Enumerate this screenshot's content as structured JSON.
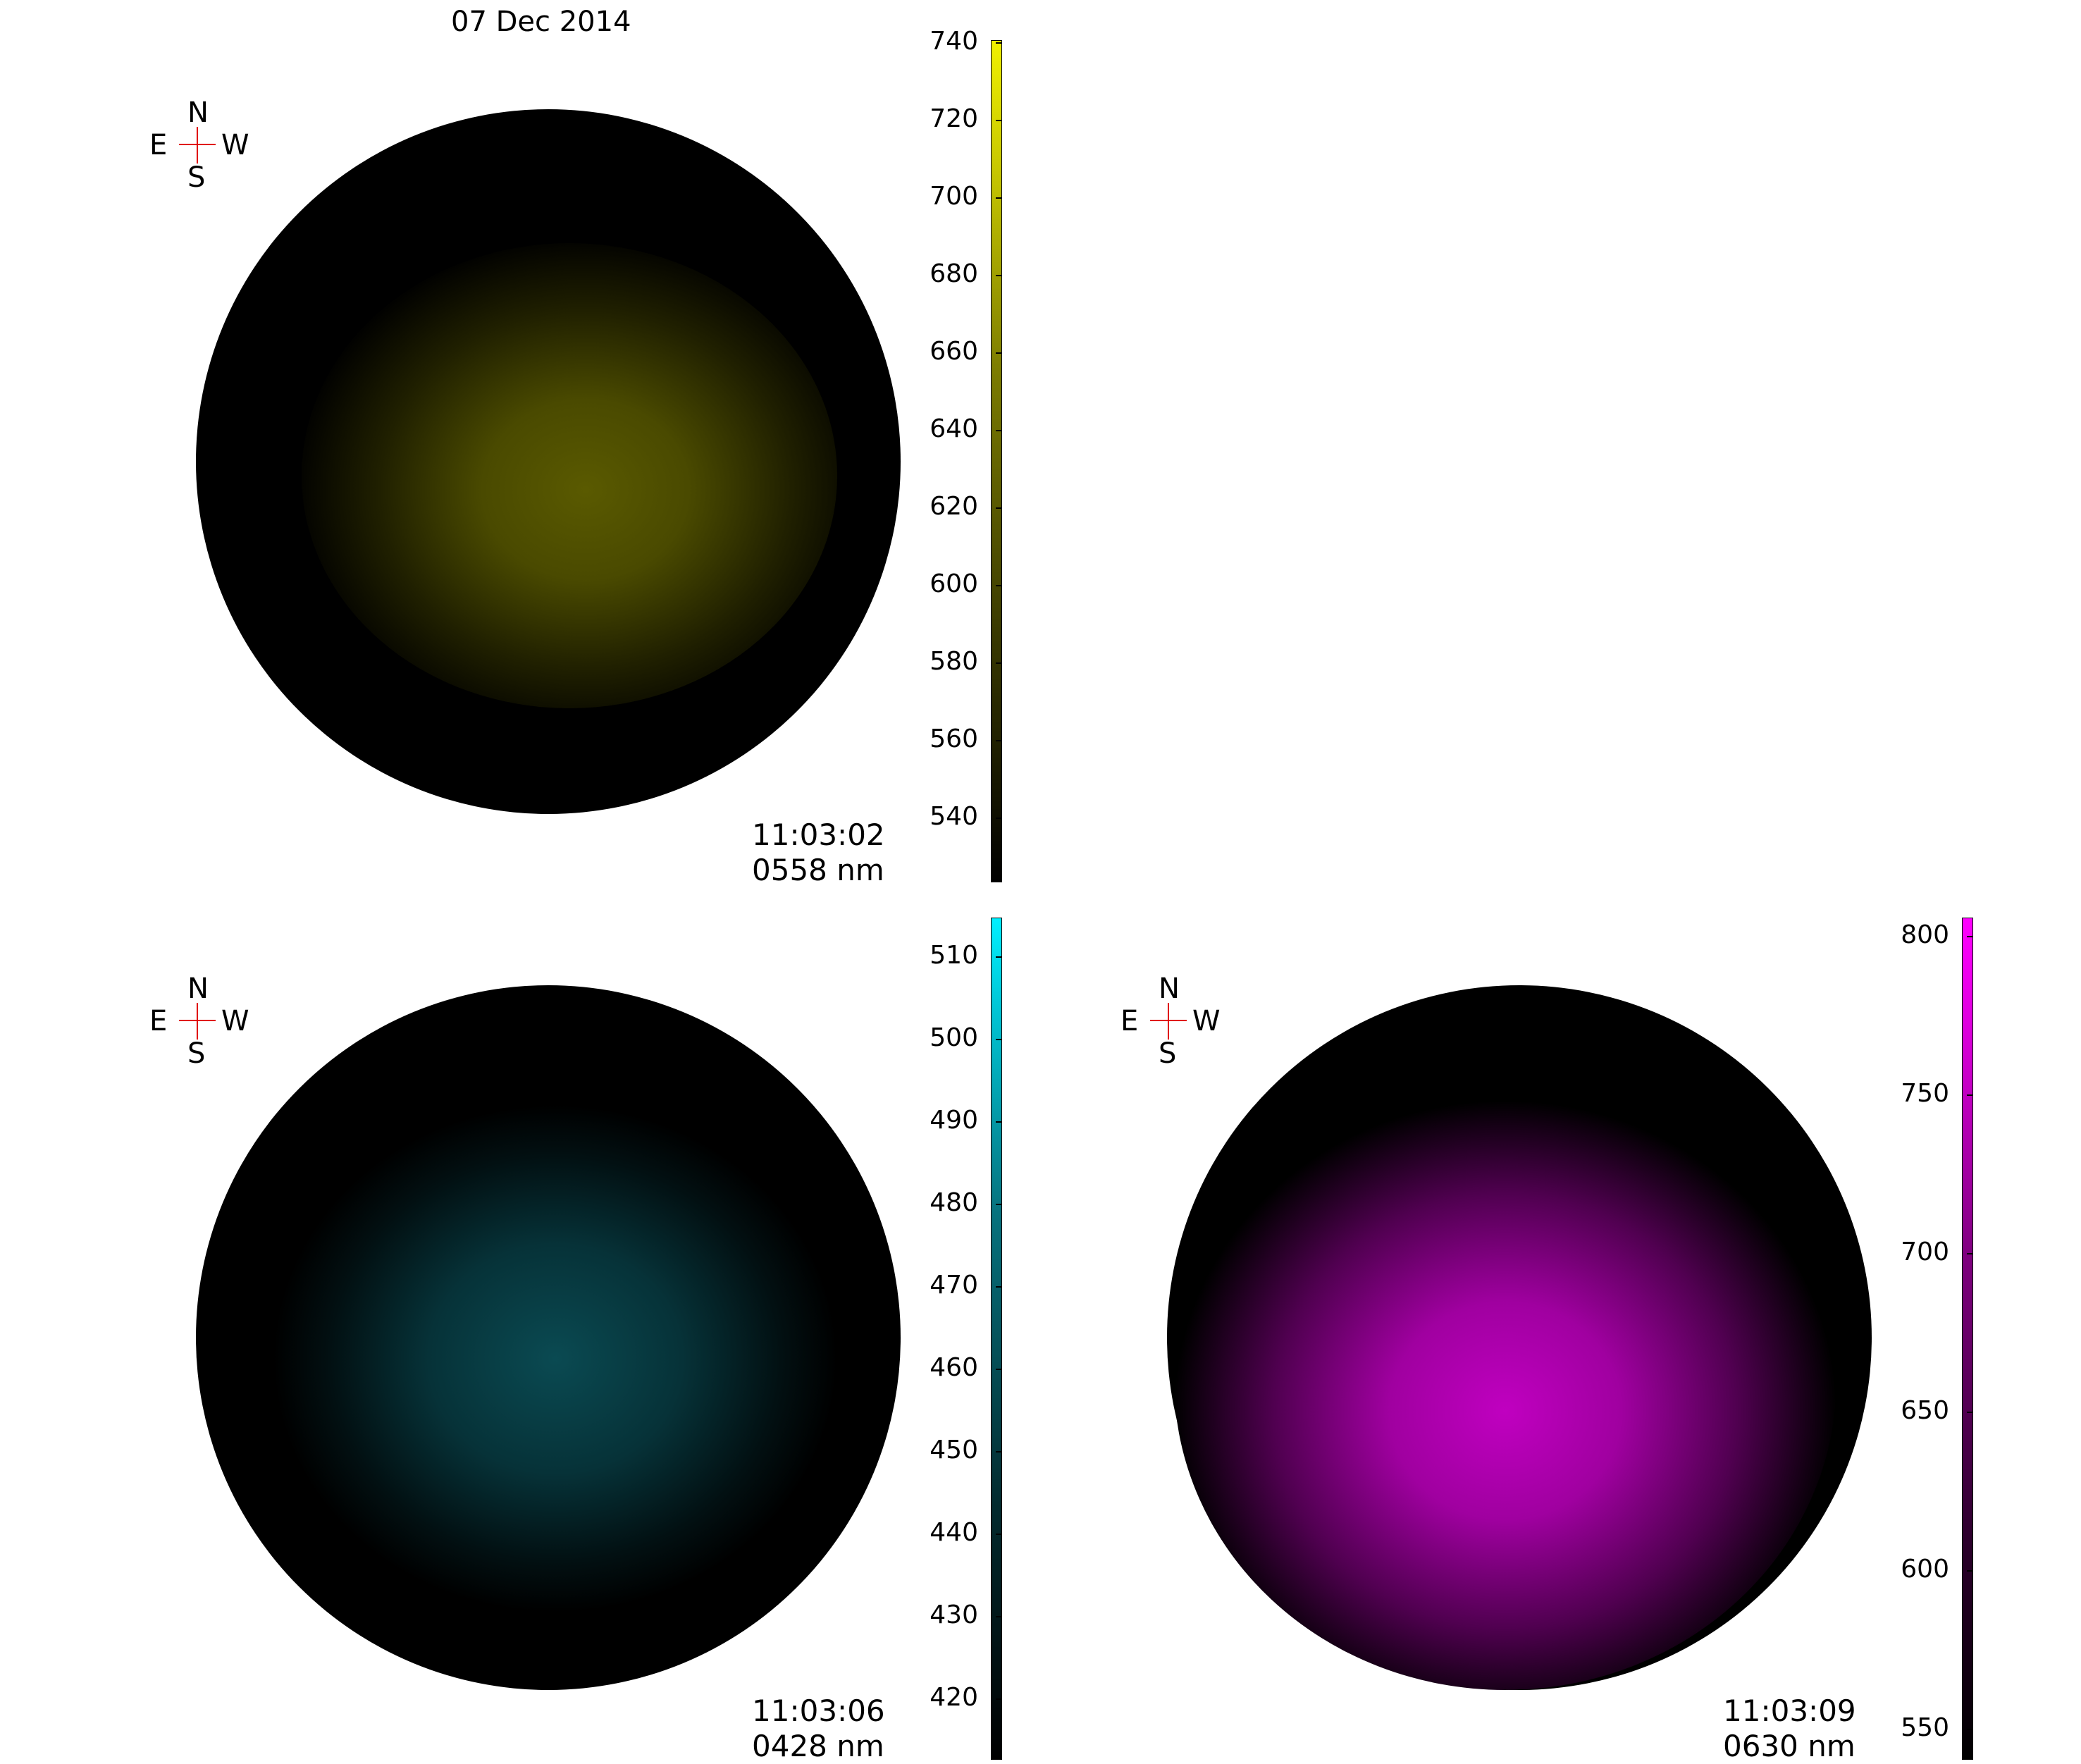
{
  "title": "07 Dec 2014",
  "panels": [
    {
      "id": "p558",
      "time": "11:03:02",
      "wavelength": "0558 nm",
      "color": "#c8c800",
      "compass": {
        "n": "N",
        "s": "S",
        "e": "E",
        "w": "W"
      },
      "colorbar": {
        "ticks": [
          "740",
          "720",
          "700",
          "680",
          "660",
          "640",
          "620",
          "600",
          "580",
          "560",
          "540"
        ]
      }
    },
    {
      "id": "p428",
      "time": "11:03:06",
      "wavelength": "0428 nm",
      "color": "#00c8d8",
      "compass": {
        "n": "N",
        "s": "S",
        "e": "E",
        "w": "W"
      },
      "colorbar": {
        "ticks": [
          "510",
          "500",
          "490",
          "480",
          "470",
          "460",
          "450",
          "440",
          "430",
          "420"
        ]
      }
    },
    {
      "id": "p630",
      "time": "11:03:09",
      "wavelength": "0630 nm",
      "color": "#ff00ff",
      "compass": {
        "n": "N",
        "s": "S",
        "e": "E",
        "w": "W"
      },
      "colorbar": {
        "ticks": [
          "800",
          "750",
          "700",
          "650",
          "600",
          "550"
        ]
      }
    }
  ]
}
